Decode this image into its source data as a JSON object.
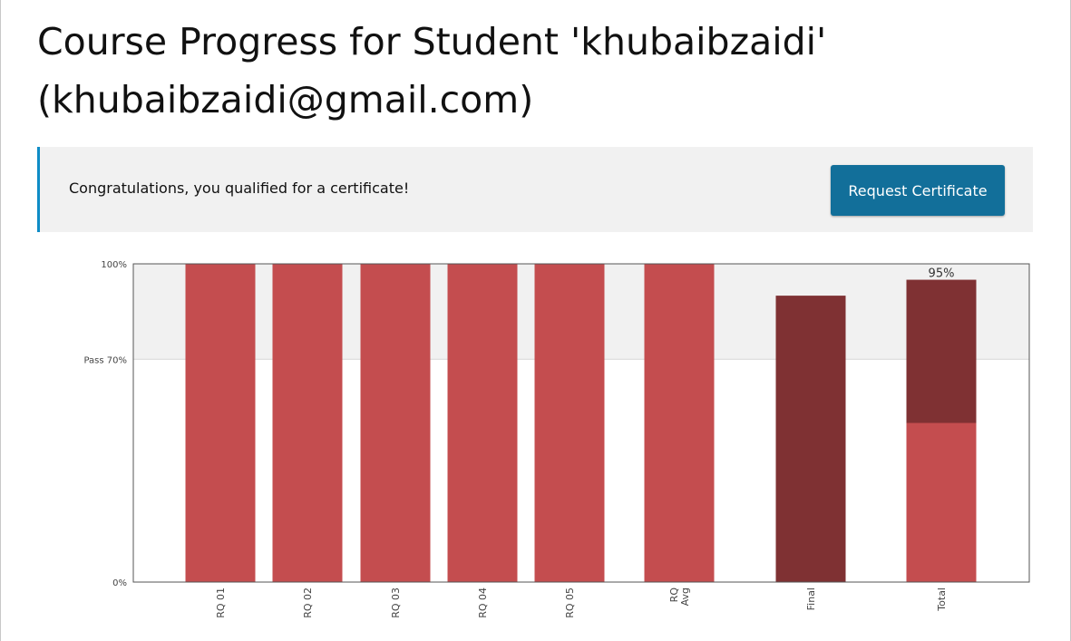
{
  "page": {
    "title_line1": "Course Progress for Student 'khubaibzaidi'",
    "title_line2": "(khubaibzaidi@gmail.com)"
  },
  "certificate_banner": {
    "message": "Congratulations, you qualified for a certificate!",
    "button_label": "Request Certificate",
    "accent_color": "#0e8cc6",
    "button_color": "#126f9a"
  },
  "chart_data": {
    "type": "bar",
    "ylim": [
      0,
      100
    ],
    "y_ticks": [
      {
        "value": 100,
        "label": "100%"
      },
      {
        "value": 70,
        "label": "Pass 70%"
      },
      {
        "value": 0,
        "label": "0%"
      }
    ],
    "pass_threshold": 70,
    "categories": [
      "RQ 01",
      "RQ 02",
      "RQ 03",
      "RQ 04",
      "RQ 05",
      "RQ Avg",
      "Final",
      "Total"
    ],
    "bars": [
      {
        "label": "RQ 01",
        "label_lines": [
          "RQ 01"
        ],
        "segments": [
          {
            "value": 100,
            "color": "#c44d4f"
          }
        ]
      },
      {
        "label": "RQ 02",
        "label_lines": [
          "RQ 02"
        ],
        "segments": [
          {
            "value": 100,
            "color": "#c44d4f"
          }
        ]
      },
      {
        "label": "RQ 03",
        "label_lines": [
          "RQ 03"
        ],
        "segments": [
          {
            "value": 100,
            "color": "#c44d4f"
          }
        ]
      },
      {
        "label": "RQ 04",
        "label_lines": [
          "RQ 04"
        ],
        "segments": [
          {
            "value": 100,
            "color": "#c44d4f"
          }
        ]
      },
      {
        "label": "RQ 05",
        "label_lines": [
          "RQ 05"
        ],
        "segments": [
          {
            "value": 100,
            "color": "#c44d4f"
          }
        ]
      },
      {
        "label": "RQ Avg",
        "label_lines": [
          "RQ",
          "Avg"
        ],
        "segments": [
          {
            "value": 100,
            "color": "#c44d4f"
          }
        ]
      },
      {
        "label": "Final",
        "label_lines": [
          "Final"
        ],
        "segments": [
          {
            "value": 90,
            "color": "#7f3133"
          }
        ]
      },
      {
        "label": "Total",
        "label_lines": [
          "Total"
        ],
        "segments": [
          {
            "value": 50,
            "color": "#c44d4f"
          },
          {
            "value": 45,
            "color": "#7f3133"
          }
        ],
        "total_label": "95%"
      }
    ],
    "colors": {
      "assignment": "#c44d4f",
      "final": "#7f3133",
      "pass_band": "#f1f1f1"
    },
    "grid": false,
    "legend": "none"
  }
}
